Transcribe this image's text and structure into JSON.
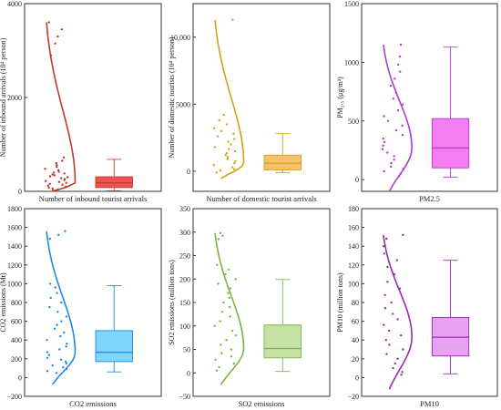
{
  "chart_data": [
    {
      "type": "box",
      "xlabel": "Number of inbound tourist arrivals",
      "ylabel": "Number of inbound arrivals (10⁴ person)",
      "ylim": [
        0,
        4000
      ],
      "ticks": [
        "0",
        "2000",
        "4000"
      ],
      "tick_values": [
        0,
        2000,
        4000
      ],
      "color": "#c0392b",
      "box_color": "#ef5350",
      "stats": {
        "whisker_low": 10,
        "q1": 80,
        "median": 180,
        "q3": 310,
        "whisker_high": 680
      },
      "points": [
        3600,
        3450,
        3300,
        3150,
        2900,
        720,
        650,
        600,
        560,
        520,
        480,
        450,
        420,
        400,
        380,
        360,
        340,
        320,
        300,
        280,
        260,
        240,
        220,
        200,
        180,
        160,
        140,
        120,
        100,
        80,
        60,
        40,
        20
      ]
    },
    {
      "type": "box",
      "xlabel": "Number of domestic tourist arrivals",
      "ylabel": "Number of domestic tourists (10⁴ person)",
      "ylim": [
        -1500,
        12500
      ],
      "ticks": [
        "0",
        "5000",
        "10,000"
      ],
      "tick_values": [
        0,
        5000,
        10000
      ],
      "color": "#d4a017",
      "box_color": "#f5c16c",
      "stats": {
        "whisker_low": -100,
        "q1": 100,
        "median": 600,
        "q3": 1200,
        "whisker_high": 2800
      },
      "points": [
        11300,
        4200,
        3800,
        3500,
        3200,
        3000,
        2800,
        2600,
        2400,
        2200,
        2000,
        1800,
        1650,
        1500,
        1350,
        1200,
        1050,
        900,
        750,
        600,
        450,
        300,
        150,
        50,
        -100
      ]
    },
    {
      "type": "box",
      "xlabel": "PM2.5",
      "ylabel": "PM₂.₅ (μg/m³)",
      "ylim": [
        -100,
        1500
      ],
      "ticks": [
        "0",
        "500",
        "1000",
        "1500"
      ],
      "tick_values": [
        0,
        500,
        1000,
        1500
      ],
      "color": "#b03ad6",
      "box_color": "#f47ef0",
      "stats": {
        "whisker_low": 20,
        "q1": 100,
        "median": 270,
        "q3": 520,
        "whisker_high": 1130
      },
      "points": [
        1150,
        1050,
        980,
        920,
        860,
        800,
        740,
        690,
        640,
        590,
        540,
        500,
        460,
        420,
        380,
        350,
        320,
        290,
        260,
        230,
        200,
        170,
        140,
        110,
        90,
        70,
        50,
        30
      ]
    },
    {
      "type": "box",
      "xlabel": "CO2 emissions",
      "ylabel": "CO2 emissions (Mt)",
      "ylim": [
        -200,
        1800
      ],
      "ticks": [
        "−200",
        "0",
        "200",
        "400",
        "600",
        "800",
        "1000",
        "1200",
        "1400",
        "1600",
        "1800"
      ],
      "tick_values": [
        -200,
        0,
        200,
        400,
        600,
        800,
        1000,
        1200,
        1400,
        1600,
        1800
      ],
      "color": "#1e88e5",
      "box_color": "#81d4fa",
      "stats": {
        "whisker_low": 60,
        "q1": 170,
        "median": 270,
        "q3": 500,
        "whisker_high": 980
      },
      "points": [
        1560,
        1520,
        1480,
        1000,
        960,
        900,
        850,
        800,
        750,
        700,
        650,
        600,
        560,
        520,
        480,
        440,
        400,
        360,
        330,
        300,
        270,
        240,
        210,
        190,
        170,
        150,
        130,
        110,
        90,
        70,
        50
      ]
    },
    {
      "type": "box",
      "xlabel": "SO2 emissions",
      "ylabel": "SO2 emissions (million tons)",
      "ylim": [
        -50,
        350
      ],
      "ticks": [
        "−50",
        "0",
        "50",
        "100",
        "150",
        "200",
        "250",
        "300",
        "350"
      ],
      "tick_values": [
        -50,
        0,
        50,
        100,
        150,
        200,
        250,
        300,
        350
      ],
      "color": "#7cb342",
      "box_color": "#c5e1a5",
      "stats": {
        "whisker_low": 3,
        "q1": 32,
        "median": 52,
        "q3": 102,
        "whisker_high": 199
      },
      "points": [
        298,
        292,
        285,
        230,
        220,
        210,
        200,
        190,
        180,
        170,
        160,
        150,
        140,
        130,
        120,
        110,
        100,
        90,
        80,
        70,
        60,
        50,
        42,
        35,
        28,
        20,
        12,
        5
      ]
    },
    {
      "type": "box",
      "xlabel": "PM10",
      "ylabel": "PM10 (million tons)",
      "ylim": [
        -20,
        180
      ],
      "ticks": [
        "−20",
        "0",
        "20",
        "40",
        "60",
        "80",
        "100",
        "120",
        "140",
        "160",
        "180"
      ],
      "tick_values": [
        -20,
        0,
        20,
        40,
        60,
        80,
        100,
        120,
        140,
        160,
        180
      ],
      "color": "#9c27b0",
      "box_color": "#e8a2f2",
      "stats": {
        "whisker_low": 4,
        "q1": 23,
        "median": 43,
        "q3": 64,
        "whisker_high": 125
      },
      "points": [
        152,
        148,
        140,
        132,
        125,
        118,
        110,
        102,
        95,
        88,
        80,
        74,
        68,
        62,
        56,
        50,
        45,
        40,
        35,
        30,
        25,
        20,
        15,
        10,
        6,
        3
      ]
    }
  ]
}
